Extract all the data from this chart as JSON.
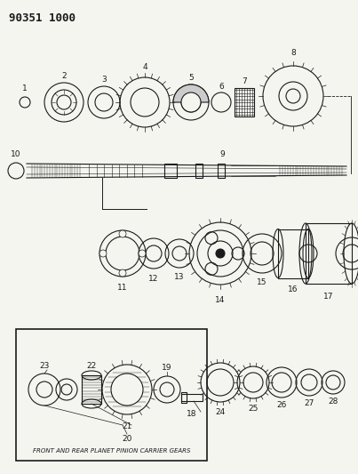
{
  "title": "90351 1000",
  "bg_color": "#f5f5f0",
  "line_color": "#1a1a1a",
  "title_fontsize": 9,
  "label_fontsize": 6.5,
  "box_label": "FRONT AND REAR PLANET PINION CARRIER GEARS",
  "fig_w": 4.03,
  "fig_h": 5.33,
  "dpi": 100
}
